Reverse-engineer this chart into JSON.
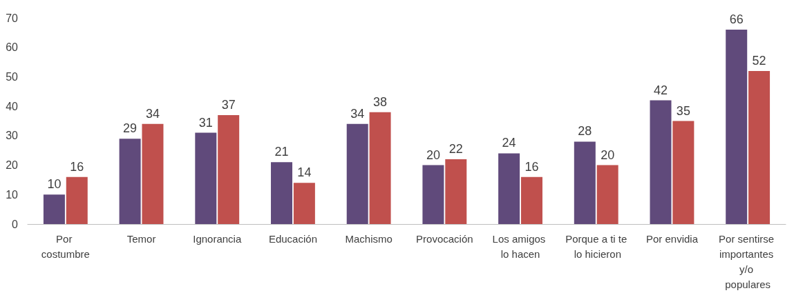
{
  "chart_data": {
    "type": "bar",
    "categories": [
      "Por costumbre",
      "Temor",
      "Ignorancia",
      "Educación",
      "Machismo",
      "Provocación",
      "Los amigos lo hacen",
      "Porque a ti te lo hicieron",
      "Por envidia",
      "Por sentirse importantes y/o populares"
    ],
    "series": [
      {
        "color": "#604a7b",
        "values": [
          10,
          29,
          31,
          21,
          34,
          20,
          24,
          28,
          42,
          66
        ]
      },
      {
        "color": "#c0504d",
        "values": [
          16,
          34,
          37,
          14,
          38,
          22,
          16,
          20,
          35,
          52
        ]
      }
    ],
    "ylim": [
      0,
      70
    ],
    "yticks": [
      0,
      10,
      20,
      30,
      40,
      50,
      60,
      70
    ],
    "grid": false,
    "data_labels": true
  }
}
